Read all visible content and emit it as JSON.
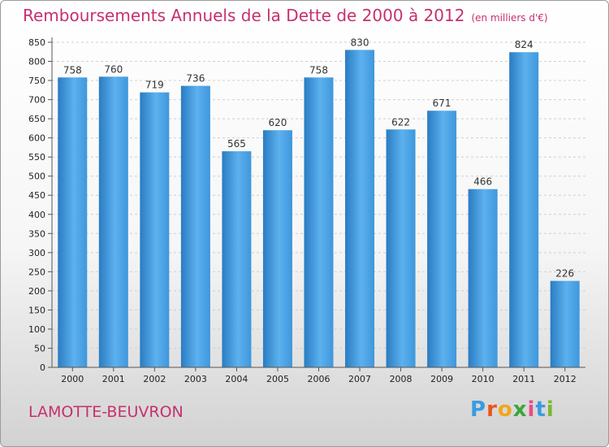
{
  "title": "Remboursements Annuels de la Dette de 2000 à 2012",
  "unit": "(en milliers d'€)",
  "commune": "LAMOTTE-BEUVRON",
  "logo": {
    "letters": [
      "P",
      "r",
      "o",
      "x",
      "i",
      "t",
      "i"
    ],
    "colors": [
      "#3a9be0",
      "#e8561f",
      "#f2a51c",
      "#3aa63a",
      "#e84c8a",
      "#3a9be0",
      "#7cb82f"
    ]
  },
  "colors": {
    "bar": "#3f97dc",
    "bar_light": "#5cb1ee",
    "bar_dark": "#2a7cc2",
    "title": "#c6306e"
  },
  "chart_data": {
    "type": "bar",
    "categories": [
      "2000",
      "2001",
      "2002",
      "2003",
      "2004",
      "2005",
      "2006",
      "2007",
      "2008",
      "2009",
      "2010",
      "2011",
      "2012"
    ],
    "values": [
      758,
      760,
      719,
      736,
      565,
      620,
      758,
      830,
      622,
      671,
      466,
      824,
      226
    ],
    "yticks": [
      0,
      50,
      100,
      150,
      200,
      250,
      300,
      350,
      400,
      450,
      500,
      550,
      600,
      650,
      700,
      750,
      800,
      850
    ],
    "ylim": [
      0,
      850
    ],
    "grid": true
  }
}
